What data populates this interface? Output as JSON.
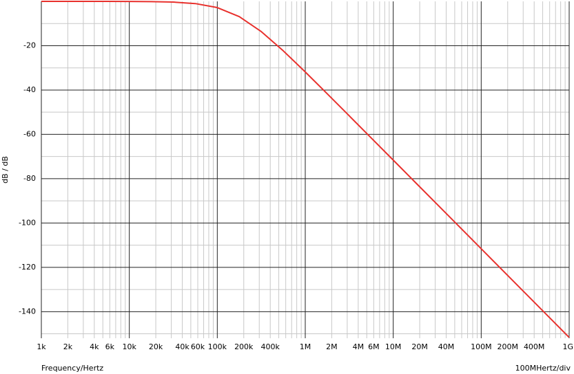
{
  "chart_data": {
    "type": "line",
    "x_label": "Frequency/Hertz",
    "y_label": "dB / dB",
    "x_scale_note": "100MHertz/div",
    "x_log": true,
    "grid": true,
    "xlim": [
      1000,
      1000000000
    ],
    "ylim": [
      -152,
      0
    ],
    "xticks": [
      {
        "value": 1000,
        "label": "1k"
      },
      {
        "value": 2000,
        "label": "2k"
      },
      {
        "value": 4000,
        "label": "4k"
      },
      {
        "value": 6000,
        "label": "6k"
      },
      {
        "value": 10000,
        "label": "10k"
      },
      {
        "value": 20000,
        "label": "20k"
      },
      {
        "value": 40000,
        "label": "40k"
      },
      {
        "value": 60000,
        "label": "60k"
      },
      {
        "value": 100000,
        "label": "100k"
      },
      {
        "value": 200000,
        "label": "200k"
      },
      {
        "value": 400000,
        "label": "400k"
      },
      {
        "value": 1000000,
        "label": "1M"
      },
      {
        "value": 2000000,
        "label": "2M"
      },
      {
        "value": 4000000,
        "label": "4M"
      },
      {
        "value": 6000000,
        "label": "6M"
      },
      {
        "value": 10000000,
        "label": "10M"
      },
      {
        "value": 20000000,
        "label": "20M"
      },
      {
        "value": 40000000,
        "label": "40M"
      },
      {
        "value": 100000000,
        "label": "100M"
      },
      {
        "value": 200000000,
        "label": "200M"
      },
      {
        "value": 400000000,
        "label": "400M"
      },
      {
        "value": 1000000000,
        "label": "1G"
      }
    ],
    "x_minor_ticks": [
      3000,
      5000,
      7000,
      8000,
      9000,
      30000,
      50000,
      70000,
      80000,
      90000,
      300000,
      500000,
      600000,
      700000,
      800000,
      900000,
      3000000,
      5000000,
      7000000,
      8000000,
      9000000,
      30000000,
      50000000,
      60000000,
      70000000,
      80000000,
      90000000,
      300000000,
      500000000,
      600000000,
      700000000,
      800000000,
      900000000
    ],
    "yticks": [
      -20,
      -40,
      -60,
      -80,
      -100,
      -120,
      -140
    ],
    "y_minor_ticks": [
      -10,
      -30,
      -50,
      -70,
      -90,
      -110,
      -130,
      -150
    ],
    "x": [
      1000,
      1778,
      3162,
      5623,
      10000,
      17783,
      31623,
      56234,
      100000,
      177828,
      316228,
      562341,
      1000000,
      1778279,
      3162278,
      5623413,
      10000000,
      17782794,
      31622777,
      56234133,
      100000000,
      177827941,
      316227766,
      562341325,
      1000000000
    ],
    "series": [
      {
        "color": "#e8302c",
        "values": [
          0,
          -0.001,
          -0.003,
          -0.011,
          -0.033,
          -0.104,
          -0.325,
          -0.99,
          -2.8,
          -6.87,
          -13.64,
          -22.31,
          -31.84,
          -41.69,
          -51.64,
          -61.63,
          -71.62,
          -81.62,
          -91.62,
          -101.62,
          -111.62,
          -121.62,
          -131.62,
          -141.62,
          -151.62
        ]
      }
    ]
  }
}
